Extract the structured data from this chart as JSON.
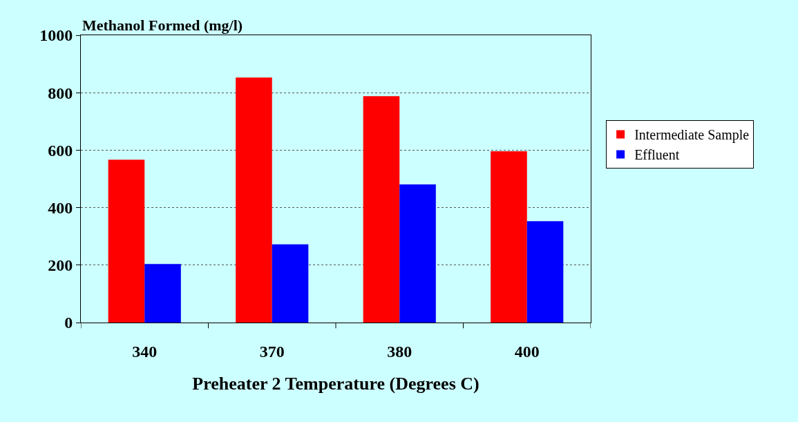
{
  "chart_data": {
    "type": "bar",
    "ylabel": "Methanol Formed (mg/l)",
    "xlabel": "Preheater 2 Temperature (Degrees C)",
    "categories": [
      "340",
      "370",
      "380",
      "400"
    ],
    "series": [
      {
        "name": "Intermediate Sample",
        "color": "#ff0000",
        "values": [
          567,
          853,
          788,
          596
        ]
      },
      {
        "name": "Effluent",
        "color": "#0000ff",
        "values": [
          204,
          272,
          481,
          353
        ]
      }
    ],
    "ylim": [
      0,
      1000
    ],
    "yticks": [
      0,
      200,
      400,
      600,
      800,
      1000
    ],
    "grid": "y",
    "legend": "right"
  }
}
